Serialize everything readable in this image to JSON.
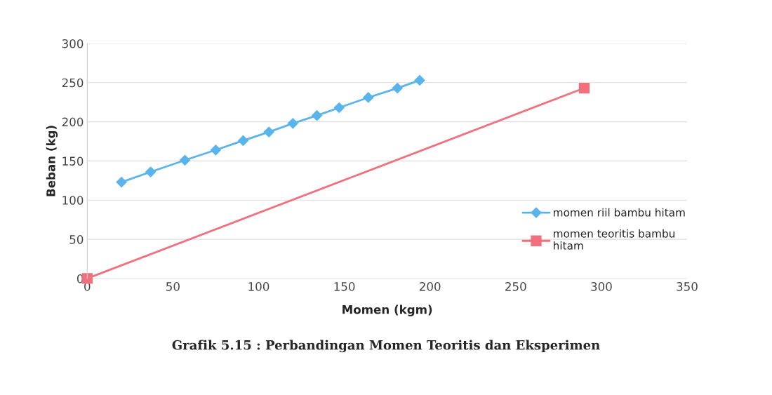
{
  "chart_data": {
    "type": "line",
    "title": "Grafik 5.15 : Perbandingan Momen Teoritis dan Eksperimen",
    "xlabel": "Momen (kgm)",
    "ylabel": "Beban (kg)",
    "series": [
      {
        "name": "momen riil bambu hitam",
        "color": "#5ab4ec",
        "marker": "diamond",
        "x": [
          20,
          37,
          57,
          75,
          91,
          106,
          120,
          134,
          147,
          164,
          181,
          194
        ],
        "values": [
          123,
          136,
          151,
          164,
          176,
          187,
          198,
          208,
          218,
          231,
          243,
          253
        ]
      },
      {
        "name": "momen teoritis bambu\nhitam",
        "color": "#f0707e",
        "marker": "square",
        "x": [
          0,
          290
        ],
        "values": [
          0,
          243
        ]
      }
    ],
    "xlim": [
      0,
      350
    ],
    "xticks": [
      0,
      50,
      100,
      150,
      200,
      250,
      300,
      350
    ],
    "ylim": [
      0,
      300
    ],
    "yticks": [
      0,
      50,
      100,
      150,
      200,
      250,
      300
    ],
    "grid": "y",
    "legend": "right"
  }
}
